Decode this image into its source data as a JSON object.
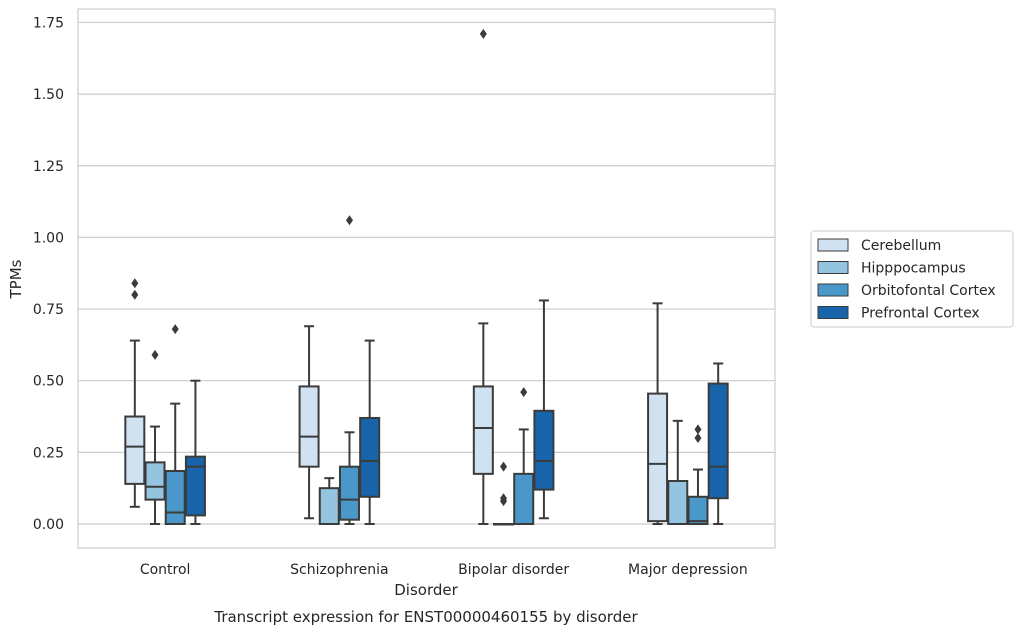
{
  "chart_data": {
    "type": "box",
    "caption": "Transcript expression for ENST00000460155 by disorder",
    "xlabel": "Disorder",
    "ylabel": "TPMs",
    "ylim": [
      -0.08,
      1.8
    ],
    "yticks": [
      0.0,
      0.25,
      0.5,
      0.75,
      1.0,
      1.25,
      1.5,
      1.75
    ],
    "ytick_labels": [
      "0.00",
      "0.25",
      "0.50",
      "0.75",
      "1.00",
      "1.25",
      "1.50",
      "1.75"
    ],
    "grid": "horizontal",
    "legend_position": "right",
    "categories": [
      "Control",
      "Schizophrenia",
      "Bipolar disorder",
      "Major depression"
    ],
    "series": [
      {
        "name": "Cerebellum",
        "color": "#d0e1f2",
        "boxes": [
          {
            "whisker_low": 0.06,
            "q1": 0.14,
            "median": 0.27,
            "q3": 0.375,
            "whisker_high": 0.64,
            "outliers": [
              0.8,
              0.84
            ]
          },
          {
            "whisker_low": 0.02,
            "q1": 0.2,
            "median": 0.305,
            "q3": 0.48,
            "whisker_high": 0.69,
            "outliers": []
          },
          {
            "whisker_low": 0.0,
            "q1": 0.175,
            "median": 0.335,
            "q3": 0.48,
            "whisker_high": 0.7,
            "outliers": [
              1.71
            ]
          },
          {
            "whisker_low": 0.0,
            "q1": 0.01,
            "median": 0.21,
            "q3": 0.455,
            "whisker_high": 0.77,
            "outliers": []
          }
        ]
      },
      {
        "name": "Hipppocampus",
        "color": "#94c4df",
        "boxes": [
          {
            "whisker_low": 0.0,
            "q1": 0.085,
            "median": 0.13,
            "q3": 0.215,
            "whisker_high": 0.34,
            "outliers": [
              0.59
            ]
          },
          {
            "whisker_low": 0.0,
            "q1": 0.0,
            "median": 0.0,
            "q3": 0.125,
            "whisker_high": 0.16,
            "outliers": []
          },
          {
            "whisker_low": 0.0,
            "q1": 0.0,
            "median": 0.0,
            "q3": 0.0,
            "whisker_high": 0.0,
            "outliers": [
              0.08,
              0.09,
              0.2
            ]
          },
          {
            "whisker_low": 0.0,
            "q1": 0.0,
            "median": 0.0,
            "q3": 0.15,
            "whisker_high": 0.36,
            "outliers": []
          }
        ]
      },
      {
        "name": "Orbitofontal Cortex",
        "color": "#4a98c9",
        "boxes": [
          {
            "whisker_low": 0.0,
            "q1": 0.0,
            "median": 0.04,
            "q3": 0.185,
            "whisker_high": 0.42,
            "outliers": [
              0.68
            ]
          },
          {
            "whisker_low": 0.0,
            "q1": 0.015,
            "median": 0.085,
            "q3": 0.2,
            "whisker_high": 0.32,
            "outliers": [
              1.06
            ]
          },
          {
            "whisker_low": 0.0,
            "q1": 0.0,
            "median": 0.0,
            "q3": 0.175,
            "whisker_high": 0.33,
            "outliers": [
              0.46
            ]
          },
          {
            "whisker_low": 0.0,
            "q1": 0.0,
            "median": 0.01,
            "q3": 0.095,
            "whisker_high": 0.19,
            "outliers": [
              0.3,
              0.33
            ]
          }
        ]
      },
      {
        "name": "Prefrontal Cortex",
        "color": "#1764ab",
        "boxes": [
          {
            "whisker_low": 0.0,
            "q1": 0.03,
            "median": 0.2,
            "q3": 0.235,
            "whisker_high": 0.5,
            "outliers": []
          },
          {
            "whisker_low": 0.0,
            "q1": 0.095,
            "median": 0.22,
            "q3": 0.37,
            "whisker_high": 0.64,
            "outliers": []
          },
          {
            "whisker_low": 0.02,
            "q1": 0.12,
            "median": 0.22,
            "q3": 0.395,
            "whisker_high": 0.78,
            "outliers": []
          },
          {
            "whisker_low": 0.0,
            "q1": 0.09,
            "median": 0.2,
            "q3": 0.49,
            "whisker_high": 0.56,
            "outliers": []
          }
        ]
      }
    ]
  }
}
